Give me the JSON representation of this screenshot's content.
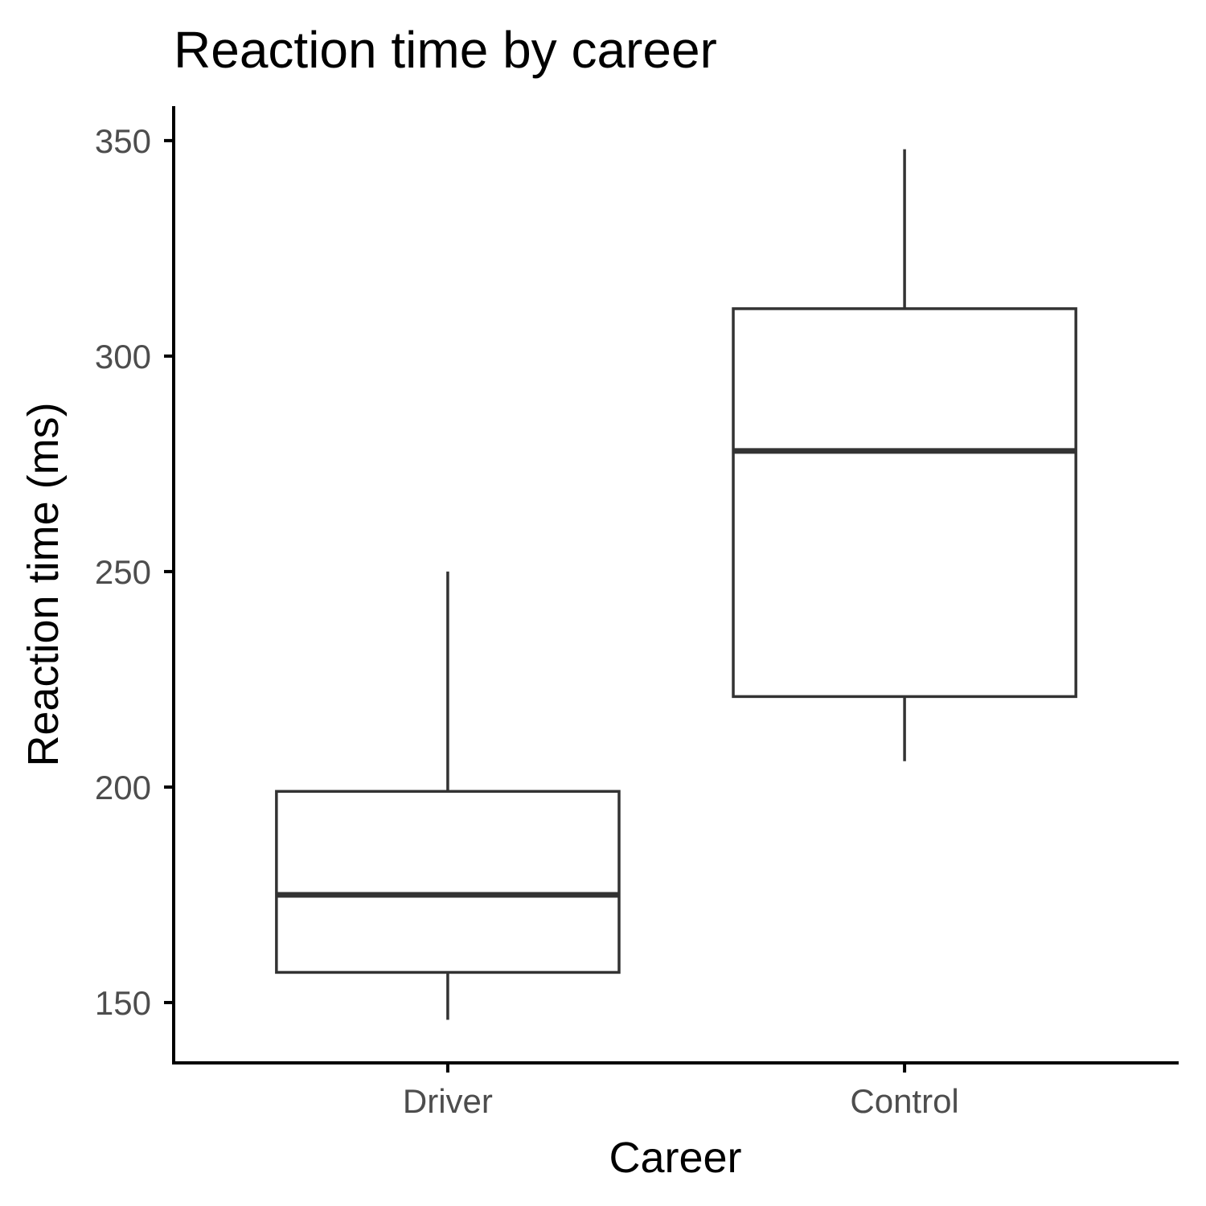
{
  "chart_data": {
    "type": "box",
    "title": "Reaction time by career",
    "xlabel": "Career",
    "ylabel": "Reaction time (ms)",
    "categories": [
      "Driver",
      "Control"
    ],
    "boxes": [
      {
        "category": "Driver",
        "whisker_low": 146,
        "q1": 157,
        "median": 175,
        "q3": 199,
        "whisker_high": 250
      },
      {
        "category": "Control",
        "whisker_low": 206,
        "q1": 221,
        "median": 278,
        "q3": 311,
        "whisker_high": 348
      }
    ],
    "yticks": [
      150,
      200,
      250,
      300,
      350
    ],
    "ylim": [
      136,
      358
    ],
    "grid": false,
    "legend": "none",
    "colors": {
      "box_stroke": "#333333",
      "box_fill": "#ffffff",
      "axis": "#000000",
      "tick_text": "#4d4d4d"
    }
  }
}
